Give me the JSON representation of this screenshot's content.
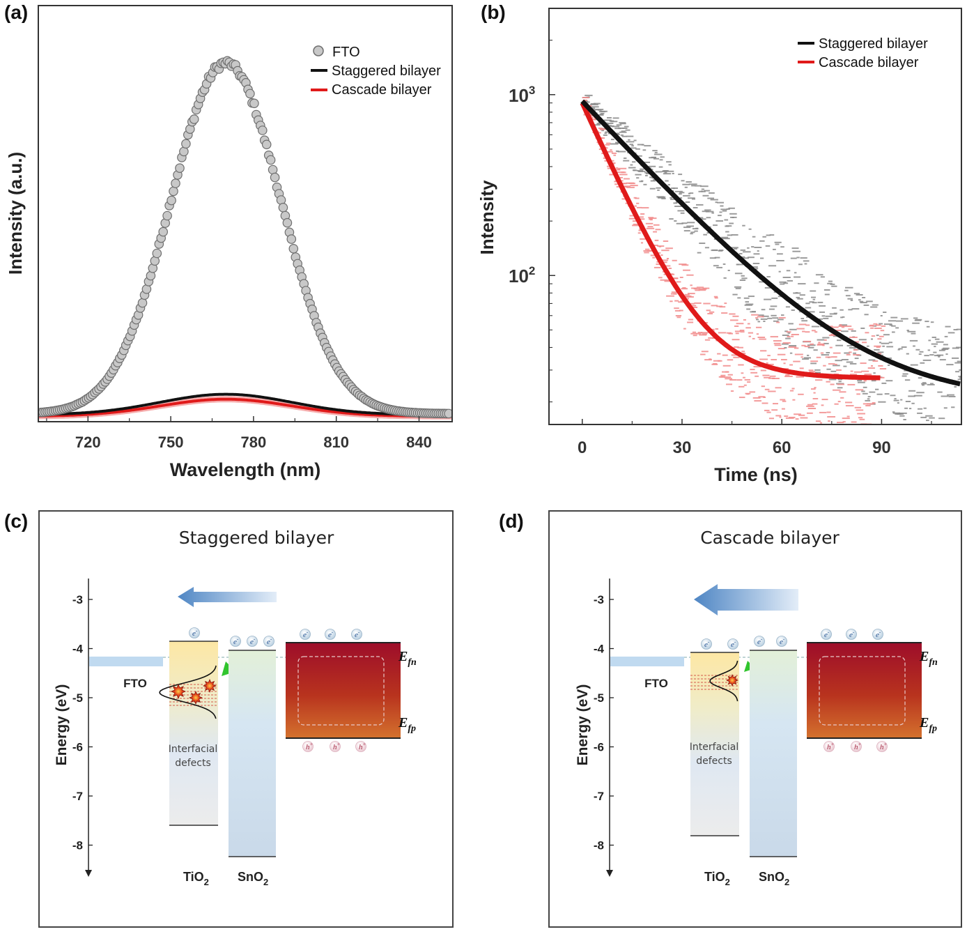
{
  "panels": {
    "a": {
      "letter": "(a)"
    },
    "b": {
      "letter": "(b)"
    },
    "c": {
      "letter": "(c)"
    },
    "d": {
      "letter": "(d)"
    }
  },
  "colors": {
    "fto_marker_fill": "#c8c8c8",
    "fto_marker_edge": "#6e6e6e",
    "staggered": "#111111",
    "cascade": "#e01a1a",
    "cascade_light": "#f28a8a",
    "staggered_light": "#8a8a8a"
  },
  "chart_data": [
    {
      "id": "a",
      "type": "scatter",
      "xlabel": "Wavelength (nm)",
      "ylabel": "Intensity (a.u.)",
      "xlim": [
        702,
        852
      ],
      "ylim": [
        0,
        1.0
      ],
      "xticks": [
        720,
        750,
        780,
        810,
        840
      ],
      "legend_position": "top-right",
      "series": [
        {
          "name": "FTO",
          "style": "hollow-circles",
          "peak_x": 770,
          "peak_y": 0.93,
          "width": 20,
          "baseline": 0.01
        },
        {
          "name": "Staggered bilayer",
          "style": "line",
          "peak_x": 770,
          "peak_y": 0.058,
          "width": 24,
          "baseline": 0.004
        },
        {
          "name": "Cascade bilayer",
          "style": "line",
          "peak_x": 770,
          "peak_y": 0.048,
          "width": 24,
          "baseline": 0.003
        }
      ]
    },
    {
      "id": "b",
      "type": "line",
      "xlabel": "Time (ns)",
      "ylabel": "Intensity",
      "yscale": "log",
      "xlim": [
        -10,
        114
      ],
      "ylim": [
        15,
        3000
      ],
      "xticks": [
        0,
        30,
        60,
        90
      ],
      "yticks": [
        {
          "value": 1000,
          "label": "10",
          "exponent": "3"
        },
        {
          "value": 100,
          "label": "10",
          "exponent": "2"
        }
      ],
      "legend_position": "top-right",
      "series": [
        {
          "name": "Staggered bilayer",
          "x_end": 114,
          "A": 920,
          "tau": 22,
          "floor": 20
        },
        {
          "name": "Cascade bilayer",
          "x_end": 90,
          "A": 900,
          "tau": 10.5,
          "floor": 27
        }
      ]
    }
  ],
  "diagrams": {
    "c": {
      "title": "Staggered bilayer",
      "axis_label": "Energy (eV)",
      "ticks": [
        "-3",
        "-4",
        "-5",
        "-6",
        "-7",
        "-8"
      ],
      "fto_label": "FTO",
      "defects_line1": "Interfacial",
      "defects_line2": "defects",
      "tio2_label": "TiO",
      "tio2_sub": "2",
      "sno2_label": "SnO",
      "sno2_sub": "2",
      "electron_symbol": "e",
      "hole_symbol": "h",
      "charge_sign_e": "-",
      "charge_sign_h": "+",
      "efn_main": "E",
      "efn_sub": "fn",
      "efp_main": "E",
      "efp_sub": "fp"
    },
    "d": {
      "title": "Cascade bilayer",
      "axis_label": "Energy (eV)",
      "ticks": [
        "-3",
        "-4",
        "-5",
        "-6",
        "-7",
        "-8"
      ],
      "fto_label": "FTO",
      "defects_line1": "Interfacial",
      "defects_line2": "defects",
      "tio2_label": "TiO",
      "tio2_sub": "2",
      "sno2_label": "SnO",
      "sno2_sub": "2",
      "electron_symbol": "e",
      "hole_symbol": "h",
      "charge_sign_e": "-",
      "charge_sign_h": "+",
      "efn_main": "E",
      "efn_sub": "fn",
      "efp_main": "E",
      "efp_sub": "fp"
    }
  }
}
